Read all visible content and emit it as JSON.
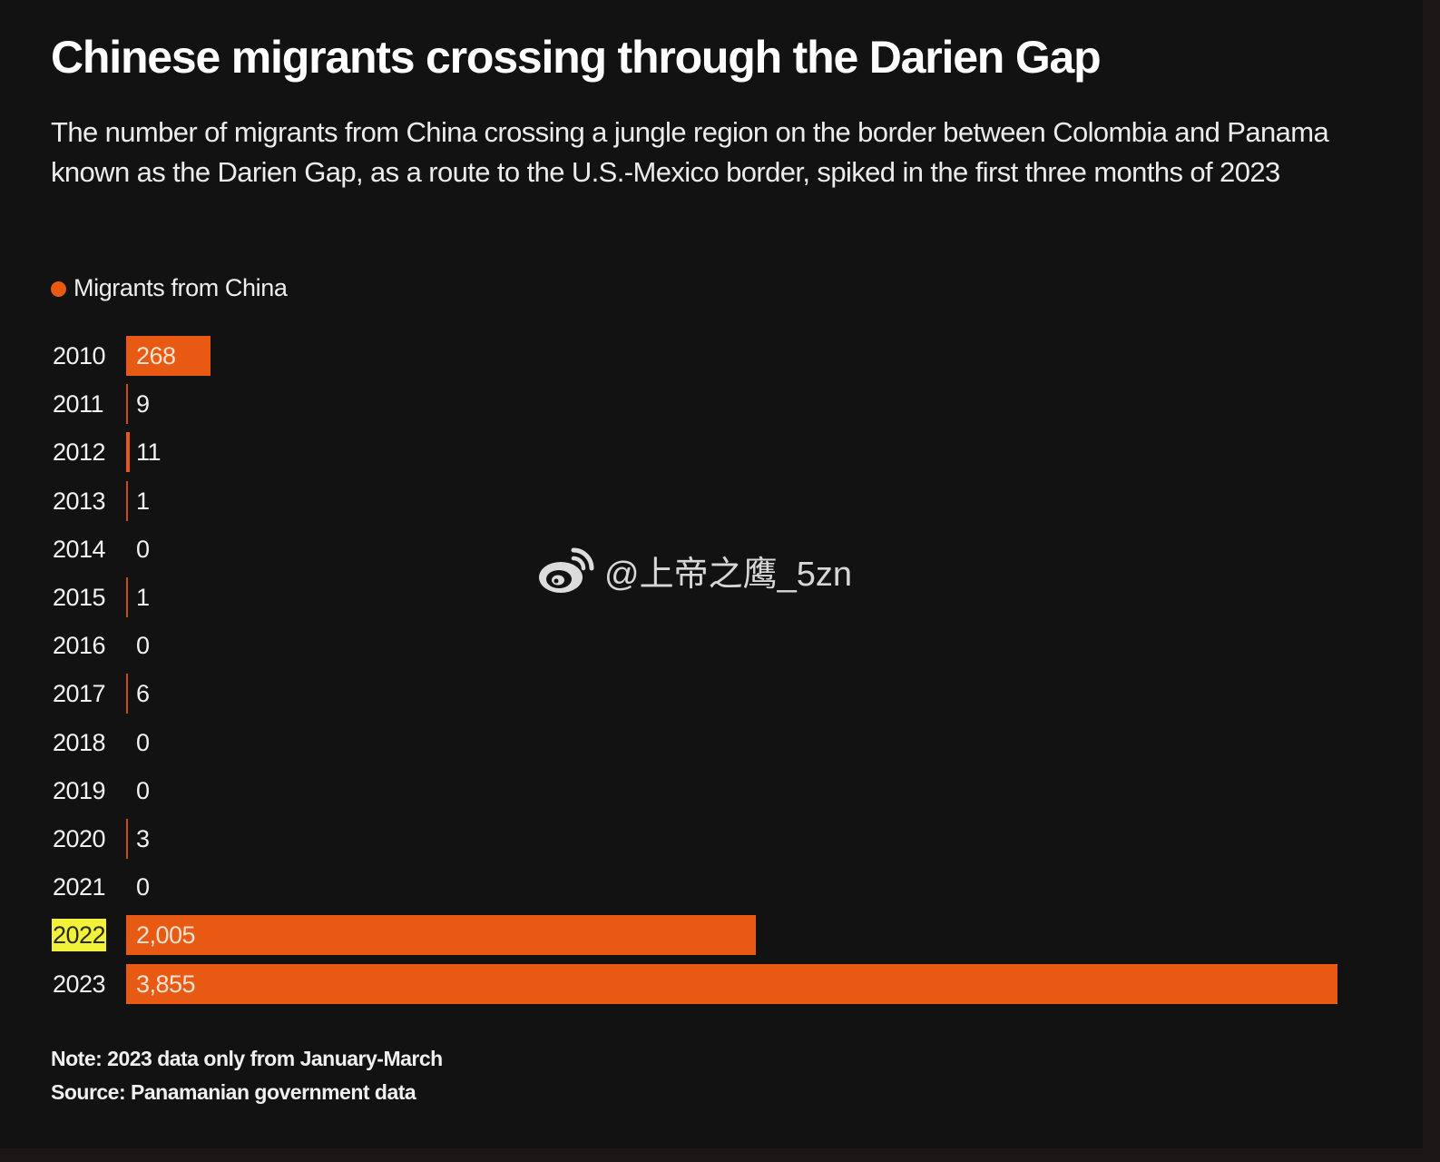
{
  "header": {
    "title": "Chinese migrants crossing through the Darien Gap",
    "subtitle": "The number of migrants from China crossing a jungle region on the border between Colombia and Panama  known as the Darien Gap, as a route to the U.S.-Mexico border, spiked in the first three months of 2023"
  },
  "legend": {
    "label": "Migrants from China",
    "color": "#e85a14"
  },
  "colors": {
    "background": "#121212",
    "bar": "#e85a14",
    "highlight": "#f2f23a"
  },
  "rows": [
    {
      "year": "2010",
      "value": 268,
      "label": "268"
    },
    {
      "year": "2011",
      "value": 9,
      "label": "9"
    },
    {
      "year": "2012",
      "value": 11,
      "label": "11"
    },
    {
      "year": "2013",
      "value": 1,
      "label": "1"
    },
    {
      "year": "2014",
      "value": 0,
      "label": "0"
    },
    {
      "year": "2015",
      "value": 1,
      "label": "1"
    },
    {
      "year": "2016",
      "value": 0,
      "label": "0"
    },
    {
      "year": "2017",
      "value": 6,
      "label": "6"
    },
    {
      "year": "2018",
      "value": 0,
      "label": "0"
    },
    {
      "year": "2019",
      "value": 0,
      "label": "0"
    },
    {
      "year": "2020",
      "value": 3,
      "label": "3"
    },
    {
      "year": "2021",
      "value": 0,
      "label": "0"
    },
    {
      "year": "2022",
      "value": 2005,
      "label": "2,005",
      "highlighted": true
    },
    {
      "year": "2023",
      "value": 3855,
      "label": "3,855"
    }
  ],
  "watermark": {
    "text": "@上帝之鹰_5zn"
  },
  "footer": {
    "note": "Note: 2023 data only from January-March",
    "source": "Source: Panamanian government data"
  },
  "chart_data": {
    "type": "bar",
    "orientation": "horizontal",
    "title": "Chinese migrants crossing through the Darien Gap",
    "subtitle": "The number of migrants from China crossing a jungle region on the border between Colombia and Panama  known as the Darien Gap, as a route to the U.S.-Mexico border, spiked in the first three months of 2023",
    "categories": [
      "2010",
      "2011",
      "2012",
      "2013",
      "2014",
      "2015",
      "2016",
      "2017",
      "2018",
      "2019",
      "2020",
      "2021",
      "2022",
      "2023"
    ],
    "series": [
      {
        "name": "Migrants from China",
        "color": "#e85a14",
        "values": [
          268,
          9,
          11,
          1,
          0,
          1,
          0,
          6,
          0,
          0,
          3,
          0,
          2005,
          3855
        ]
      }
    ],
    "data_labels": [
      "268",
      "9",
      "11",
      "1",
      "0",
      "1",
      "0",
      "6",
      "0",
      "0",
      "3",
      "0",
      "2,005",
      "3,855"
    ],
    "highlighted_category": "2022",
    "xlabel": "",
    "ylabel": "",
    "xlim": [
      0,
      3855
    ],
    "grid": false,
    "legend_position": "top-left",
    "annotations": [
      "Note: 2023 data only from January-March",
      "Source: Panamanian government data"
    ]
  }
}
